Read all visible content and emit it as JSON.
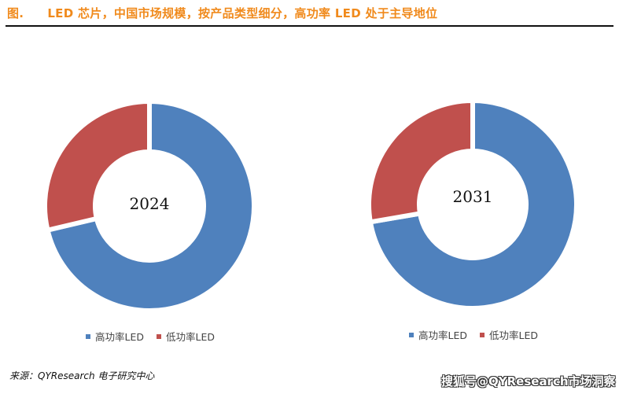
{
  "title": {
    "prefix": "图.",
    "text": "LED 芯片，中国市场规模，按产品类型细分，高功率 LED 处于主导地位"
  },
  "colors": {
    "title": "#f08a1c",
    "high_power": "#4f81bd",
    "low_power": "#c0504d"
  },
  "chart_data": [
    {
      "type": "pie",
      "style": "donut",
      "center_label": "2024",
      "categories": [
        "高功率LED",
        "低功率LED"
      ],
      "values": [
        71.3,
        28.7
      ],
      "unit": "%",
      "start_angle": "top",
      "direction": "clockwise",
      "legend": [
        "高功率LED",
        "低功率LED"
      ],
      "legend_position": "bottom"
    },
    {
      "type": "pie",
      "style": "donut",
      "center_label": "2031",
      "categories": [
        "高功率LED",
        "低功率LED"
      ],
      "values": [
        72.3,
        27.7
      ],
      "unit": "%",
      "start_angle": "top",
      "direction": "clockwise",
      "legend": [
        "高功率LED",
        "低功率LED"
      ],
      "legend_position": "bottom"
    }
  ],
  "source": "来源：QYResearch 电子研究中心",
  "watermark": "搜狐号@QYResearch市场洞察"
}
